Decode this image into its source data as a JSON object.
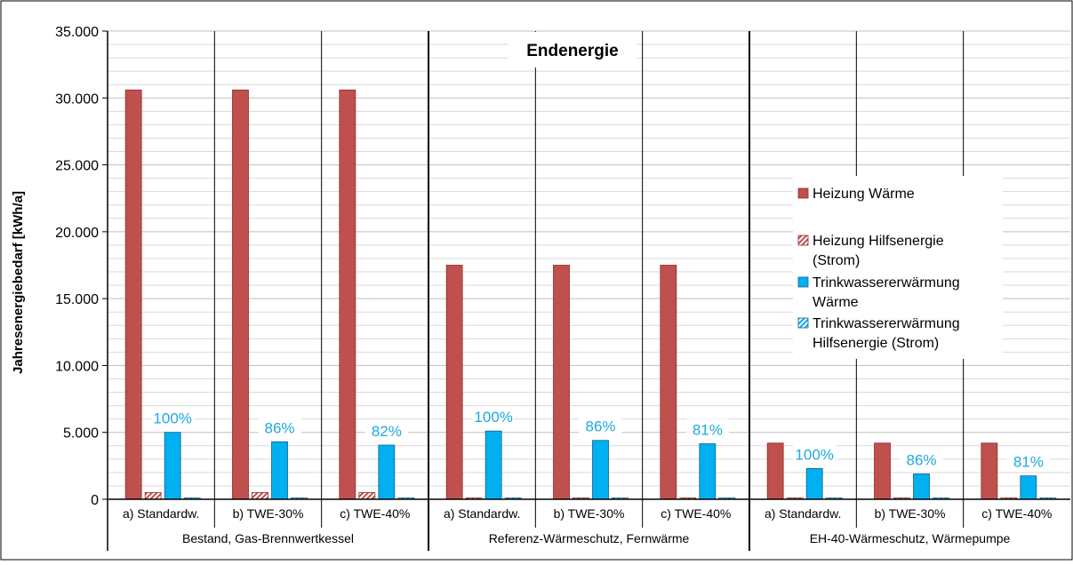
{
  "chart_data": {
    "type": "bar",
    "title": "Endenergie",
    "ylabel": "Jahresenergiebedarf [kWh/a]",
    "xlabel": "",
    "ylim": [
      0,
      35000
    ],
    "ytick_step": 5000,
    "minor_grid_step": 1000,
    "y_tick_labels": [
      "0",
      "5.000",
      "10.000",
      "15.000",
      "20.000",
      "25.000",
      "30.000",
      "35.000"
    ],
    "grid": true,
    "legend_position": "right",
    "groups": [
      {
        "label": "Bestand, Gas-Brennwertkessel",
        "categories": [
          {
            "label": "a) Standardw.",
            "values": [
              30600,
              500,
              5000,
              80
            ],
            "pct_label": "100%"
          },
          {
            "label": "b) TWE-30%",
            "values": [
              30600,
              500,
              4300,
              80
            ],
            "pct_label": "86%"
          },
          {
            "label": "c) TWE-40%",
            "values": [
              30600,
              500,
              4050,
              80
            ],
            "pct_label": "82%"
          }
        ]
      },
      {
        "label": "Referenz-Wärmeschutz, Fernwärme",
        "categories": [
          {
            "label": "a) Standardw.",
            "values": [
              17500,
              60,
              5100,
              80
            ],
            "pct_label": "100%"
          },
          {
            "label": "b) TWE-30%",
            "values": [
              17500,
              60,
              4400,
              80
            ],
            "pct_label": "86%"
          },
          {
            "label": "c) TWE-40%",
            "values": [
              17500,
              60,
              4150,
              80
            ],
            "pct_label": "81%"
          }
        ]
      },
      {
        "label": "EH-40-Wärmeschutz, Wärmepumpe",
        "categories": [
          {
            "label": "a) Standardw.",
            "values": [
              4200,
              60,
              2300,
              60
            ],
            "pct_label": "100%"
          },
          {
            "label": "b) TWE-30%",
            "values": [
              4200,
              60,
              1900,
              60
            ],
            "pct_label": "86%"
          },
          {
            "label": "c) TWE-40%",
            "values": [
              4200,
              60,
              1750,
              60
            ],
            "pct_label": "81%"
          }
        ]
      }
    ],
    "series": [
      {
        "name_lines": [
          "Heizung Wärme"
        ],
        "color": "#c0504d",
        "stroke": "#8b2e2b",
        "pattern": "solid"
      },
      {
        "name_lines": [
          "Heizung Hilfsenergie",
          "(Strom)"
        ],
        "color": "#e6a59d",
        "stroke": "#8b2e2b",
        "pattern": "hatch"
      },
      {
        "name_lines": [
          "Trinkwassererwärmung",
          "Wärme"
        ],
        "color": "#00b0f0",
        "stroke": "#1a5c8a",
        "pattern": "solid"
      },
      {
        "name_lines": [
          "Trinkwassererwärmung",
          "Hilfsenergie (Strom)"
        ],
        "color": "#7fd6f5",
        "stroke": "#1a5c8a",
        "pattern": "hatch"
      }
    ],
    "pct_label_color": "#1fa8e0"
  }
}
